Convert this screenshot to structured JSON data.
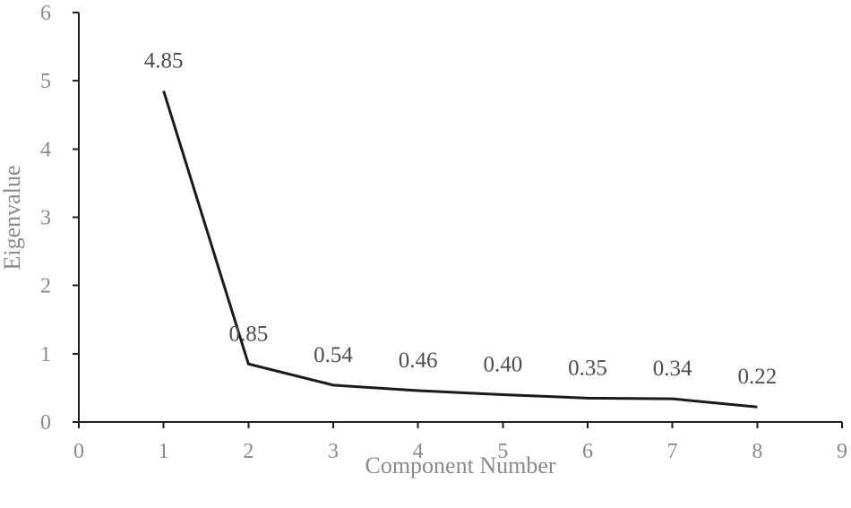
{
  "chart_data": {
    "type": "line",
    "title": "",
    "xlabel": "Component Number",
    "ylabel": "Eigenvalue",
    "x": [
      1,
      2,
      3,
      4,
      5,
      6,
      7,
      8
    ],
    "series": [
      {
        "values": [
          4.85,
          0.85,
          0.54,
          0.46,
          0.4,
          0.35,
          0.34,
          0.22
        ],
        "data_labels": [
          "4.85",
          "0.85",
          "0.54",
          "0.46",
          "0.40",
          "0.35",
          "0.34",
          "0.22"
        ]
      }
    ],
    "xlim": [
      0,
      9
    ],
    "ylim": [
      0,
      6
    ],
    "xticks": [
      "0",
      "1",
      "2",
      "3",
      "4",
      "5",
      "6",
      "7",
      "8",
      "9"
    ],
    "yticks": [
      "0",
      "1",
      "2",
      "3",
      "4",
      "5",
      "6"
    ],
    "grid": false,
    "legend": "none",
    "colors": {
      "line": "#1a1a1a",
      "axis": "#1f1f1f",
      "tick_text": "#8a8a8a",
      "data_label_text": "#4d4d4d"
    }
  }
}
